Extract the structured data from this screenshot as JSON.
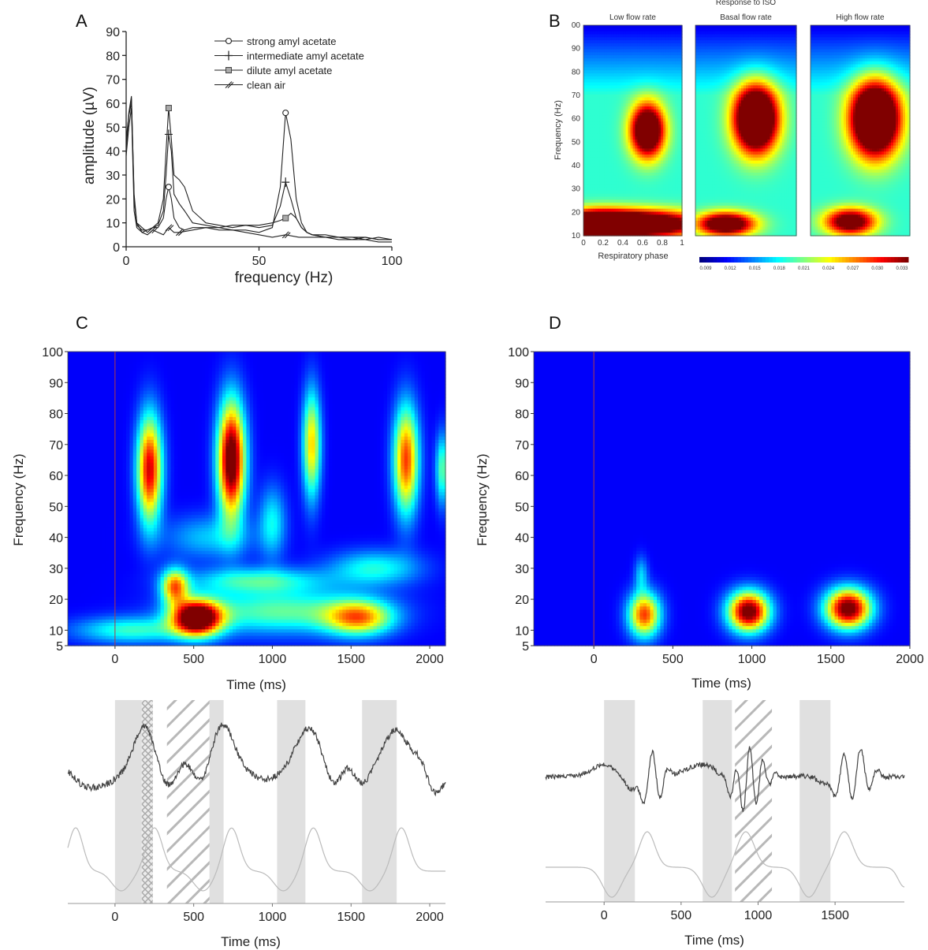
{
  "panels": {
    "A": {
      "letter": "A"
    },
    "B": {
      "letter": "B"
    },
    "C": {
      "letter": "C"
    },
    "D": {
      "letter": "D"
    }
  },
  "chart_data": [
    {
      "id": "A",
      "type": "line",
      "xlabel": "frequency (Hz)",
      "ylabel": "amplitude (µV)",
      "xlim": [
        0,
        100
      ],
      "ylim": [
        0,
        90
      ],
      "xticks": [
        0,
        50,
        100
      ],
      "yticks": [
        0,
        10,
        20,
        30,
        40,
        50,
        60,
        70,
        80,
        90
      ],
      "legend_position": "top-right",
      "series": [
        {
          "name": "strong amyl acetate",
          "marker": "circle",
          "x": [
            0,
            1,
            2,
            3,
            4,
            6,
            8,
            10,
            12,
            14,
            15,
            16,
            17,
            18,
            20,
            22,
            25,
            30,
            35,
            40,
            45,
            50,
            55,
            58,
            60,
            62,
            64,
            66,
            68,
            70,
            75,
            80,
            85,
            90,
            95,
            100
          ],
          "y": [
            45,
            55,
            60,
            20,
            10,
            6,
            7,
            8,
            8,
            12,
            20,
            25,
            20,
            12,
            8,
            7,
            8,
            8,
            8,
            7,
            7,
            6,
            8,
            25,
            56,
            45,
            20,
            10,
            6,
            5,
            5,
            4,
            4,
            4,
            3,
            3
          ],
          "marker_x": [
            16,
            60
          ]
        },
        {
          "name": "intermediate amyl acetate",
          "marker": "plus",
          "x": [
            0,
            1,
            2,
            3,
            4,
            6,
            8,
            10,
            12,
            14,
            15,
            16,
            17,
            18,
            20,
            22,
            25,
            30,
            35,
            40,
            45,
            50,
            55,
            58,
            60,
            62,
            64,
            66,
            68,
            70,
            75,
            80,
            85,
            90,
            95,
            100
          ],
          "y": [
            40,
            55,
            62,
            22,
            10,
            8,
            6,
            8,
            9,
            15,
            30,
            47,
            40,
            22,
            18,
            15,
            10,
            9,
            8,
            9,
            9,
            8,
            9,
            17,
            27,
            20,
            12,
            8,
            6,
            5,
            4,
            4,
            3,
            4,
            3,
            3
          ],
          "marker_x": [
            16,
            60
          ]
        },
        {
          "name": "dilute amyl acetate",
          "marker": "square",
          "x": [
            0,
            1,
            2,
            3,
            4,
            6,
            8,
            10,
            12,
            14,
            15,
            16,
            17,
            18,
            20,
            22,
            25,
            30,
            35,
            40,
            45,
            50,
            55,
            58,
            60,
            62,
            64,
            66,
            68,
            70,
            75,
            80,
            85,
            90,
            95,
            100
          ],
          "y": [
            42,
            56,
            63,
            20,
            9,
            7,
            7,
            8,
            10,
            20,
            40,
            58,
            45,
            30,
            28,
            25,
            15,
            10,
            9,
            8,
            9,
            9,
            10,
            11,
            12,
            14,
            12,
            8,
            6,
            5,
            4,
            4,
            4,
            3,
            4,
            3
          ],
          "marker_x": [
            16,
            60
          ]
        },
        {
          "name": "clean air",
          "marker": "slash",
          "x": [
            0,
            1,
            2,
            3,
            4,
            6,
            8,
            10,
            12,
            14,
            16,
            18,
            20,
            25,
            30,
            35,
            40,
            45,
            50,
            55,
            60,
            65,
            70,
            75,
            80,
            85,
            90,
            95,
            100
          ],
          "y": [
            38,
            50,
            58,
            15,
            8,
            6,
            5,
            7,
            6,
            5,
            8,
            6,
            6,
            7,
            8,
            7,
            7,
            6,
            5,
            4,
            5,
            4,
            4,
            4,
            3,
            3,
            3,
            2,
            2
          ],
          "marker_x": [
            10,
            16,
            22,
            62
          ]
        }
      ]
    },
    {
      "id": "B",
      "type": "heatmap",
      "title": "Response to ISO",
      "xlabel": "Respiratory phase",
      "ylabel": "Frequency (Hz)",
      "xlim": [
        0,
        1
      ],
      "ylim": [
        10,
        100
      ],
      "xtick_labels": [
        "0",
        "0.2",
        "0.4",
        "0.6",
        "0.8",
        "1"
      ],
      "ytick_labels": [
        "10",
        "20",
        "30",
        "40",
        "50",
        "60",
        "70",
        "80",
        "90",
        "00"
      ],
      "subplots": [
        {
          "title": "Low flow rate",
          "blobs": [
            {
              "x": 0.65,
              "y": 55,
              "sx": 0.12,
              "sy": 8,
              "amp": 0.95
            },
            {
              "x": 0.55,
              "y": 15,
              "sx": 0.45,
              "sy": 4,
              "amp": 1.0
            },
            {
              "x": 0.1,
              "y": 15,
              "sx": 0.25,
              "sy": 4,
              "amp": 0.7
            }
          ]
        },
        {
          "title": "Basal flow rate",
          "blobs": [
            {
              "x": 0.6,
              "y": 60,
              "sx": 0.15,
              "sy": 10,
              "amp": 1.15
            },
            {
              "x": 0.3,
              "y": 15,
              "sx": 0.2,
              "sy": 3.5,
              "amp": 0.85
            }
          ]
        },
        {
          "title": "High flow rate",
          "blobs": [
            {
              "x": 0.65,
              "y": 60,
              "sx": 0.17,
              "sy": 11,
              "amp": 1.2
            },
            {
              "x": 0.4,
              "y": 16,
              "sx": 0.18,
              "sy": 4,
              "amp": 0.75
            }
          ]
        }
      ],
      "colorbar_labels": [
        "0.009",
        "0.012",
        "0.015",
        "0.018",
        "0.021",
        "0.024",
        "0.027",
        "0.030",
        "0.033"
      ]
    },
    {
      "id": "C",
      "type": "heatmap",
      "xlabel": "Time (ms)",
      "ylabel": "Frequency (Hz)",
      "xlim": [
        -300,
        2100
      ],
      "ylim": [
        5,
        100
      ],
      "xticks": [
        0,
        500,
        1000,
        1500,
        2000
      ],
      "yticks": [
        5,
        10,
        20,
        30,
        40,
        50,
        60,
        70,
        80,
        90,
        100
      ],
      "blobs": [
        {
          "x": 220,
          "y": 62,
          "sx": 55,
          "sy": 12,
          "amp": 0.8
        },
        {
          "x": 740,
          "y": 65,
          "sx": 60,
          "sy": 13,
          "amp": 1.0
        },
        {
          "x": 1250,
          "y": 70,
          "sx": 40,
          "sy": 12,
          "amp": 0.55
        },
        {
          "x": 1850,
          "y": 65,
          "sx": 55,
          "sy": 12,
          "amp": 0.7
        },
        {
          "x": 520,
          "y": 14,
          "sx": 110,
          "sy": 4,
          "amp": 1.05
        },
        {
          "x": 380,
          "y": 24,
          "sx": 60,
          "sy": 4,
          "amp": 0.6
        },
        {
          "x": 1550,
          "y": 14,
          "sx": 150,
          "sy": 4,
          "amp": 0.55
        },
        {
          "x": 1050,
          "y": 16,
          "sx": 400,
          "sy": 5,
          "amp": 0.35
        },
        {
          "x": 900,
          "y": 26,
          "sx": 300,
          "sy": 3,
          "amp": 0.3
        },
        {
          "x": 1650,
          "y": 30,
          "sx": 200,
          "sy": 4,
          "amp": 0.28
        },
        {
          "x": 100,
          "y": 10,
          "sx": 250,
          "sy": 3,
          "amp": 0.3
        },
        {
          "x": 2080,
          "y": 62,
          "sx": 30,
          "sy": 8,
          "amp": 0.35
        },
        {
          "x": 1000,
          "y": 45,
          "sx": 60,
          "sy": 8,
          "amp": 0.25
        },
        {
          "x": 600,
          "y": 40,
          "sx": 200,
          "sy": 5,
          "amp": 0.2
        }
      ],
      "trace": {
        "xlabel": "Time (ms)",
        "xlim": [
          -300,
          2100
        ],
        "xticks": [
          0,
          500,
          1000,
          1500,
          2000
        ],
        "shaded": [
          [
            0,
            170
          ],
          [
            500,
            690
          ],
          [
            1030,
            1210
          ],
          [
            1570,
            1790
          ]
        ],
        "hatched": [
          [
            330,
            600
          ]
        ],
        "crosshatched": [
          [
            170,
            240
          ]
        ]
      }
    },
    {
      "id": "D",
      "type": "heatmap",
      "xlabel": "Time (ms)",
      "ylabel": "Frequency (Hz)",
      "xlim": [
        -380,
        2000
      ],
      "ylim": [
        5,
        100
      ],
      "xticks": [
        0,
        500,
        1000,
        1500,
        2000
      ],
      "yticks": [
        5,
        10,
        20,
        30,
        40,
        50,
        60,
        70,
        80,
        90,
        100
      ],
      "blobs": [
        {
          "x": 320,
          "y": 15,
          "sx": 70,
          "sy": 5,
          "amp": 0.7
        },
        {
          "x": 980,
          "y": 16,
          "sx": 90,
          "sy": 4.5,
          "amp": 0.95
        },
        {
          "x": 1610,
          "y": 17,
          "sx": 100,
          "sy": 4.5,
          "amp": 0.95
        },
        {
          "x": 300,
          "y": 28,
          "sx": 30,
          "sy": 4,
          "amp": 0.2
        }
      ],
      "trace": {
        "xlabel": "Time (ms)",
        "xlim": [
          -380,
          1950
        ],
        "xticks": [
          0,
          500,
          1000,
          1500
        ],
        "shaded": [
          [
            0,
            200
          ],
          [
            640,
            830
          ],
          [
            1270,
            1470
          ]
        ],
        "hatched": [
          [
            850,
            1090
          ]
        ]
      }
    }
  ]
}
